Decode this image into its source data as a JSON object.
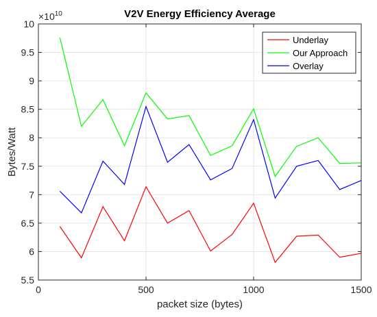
{
  "chart_data": {
    "type": "line",
    "title": "V2V Energy Efficiency Average",
    "xlabel": "packet size (bytes)",
    "ylabel": "Bytes/Watt",
    "y_exponent_label": "×10",
    "y_exponent_power": "10",
    "xlim": [
      0,
      1500
    ],
    "ylim": [
      5.5,
      10
    ],
    "xticks": [
      0,
      500,
      1000,
      1500
    ],
    "xtick_labels": [
      "0",
      "500",
      "1000",
      "1500"
    ],
    "yticks": [
      5.5,
      6,
      6.5,
      7,
      7.5,
      8,
      8.5,
      9,
      9.5,
      10
    ],
    "ytick_labels": [
      "5.5",
      "6",
      "6.5",
      "7",
      "7.5",
      "8",
      "8.5",
      "9",
      "9.5",
      "10"
    ],
    "grid": true,
    "legend_position": "top-right",
    "x": [
      100,
      200,
      300,
      400,
      500,
      600,
      700,
      800,
      900,
      1000,
      1100,
      1200,
      1300,
      1400,
      1500
    ],
    "series": [
      {
        "name": "Underlay",
        "color": "#ff0000",
        "values": [
          6.44,
          5.89,
          6.79,
          6.19,
          7.14,
          6.5,
          6.72,
          6.01,
          6.3,
          6.85,
          5.81,
          6.27,
          6.29,
          5.9,
          5.97
        ]
      },
      {
        "name": "Our Approach",
        "color": "#00ff00",
        "values": [
          9.76,
          8.2,
          8.67,
          7.86,
          8.79,
          8.33,
          8.39,
          7.69,
          7.86,
          8.51,
          7.32,
          7.85,
          8.0,
          7.55,
          7.56
        ]
      },
      {
        "name": "Overlay",
        "color": "#0000ff",
        "values": [
          7.06,
          6.68,
          7.59,
          7.18,
          8.55,
          7.57,
          7.88,
          7.26,
          7.46,
          8.32,
          6.94,
          7.5,
          7.6,
          7.09,
          7.25
        ]
      }
    ]
  }
}
